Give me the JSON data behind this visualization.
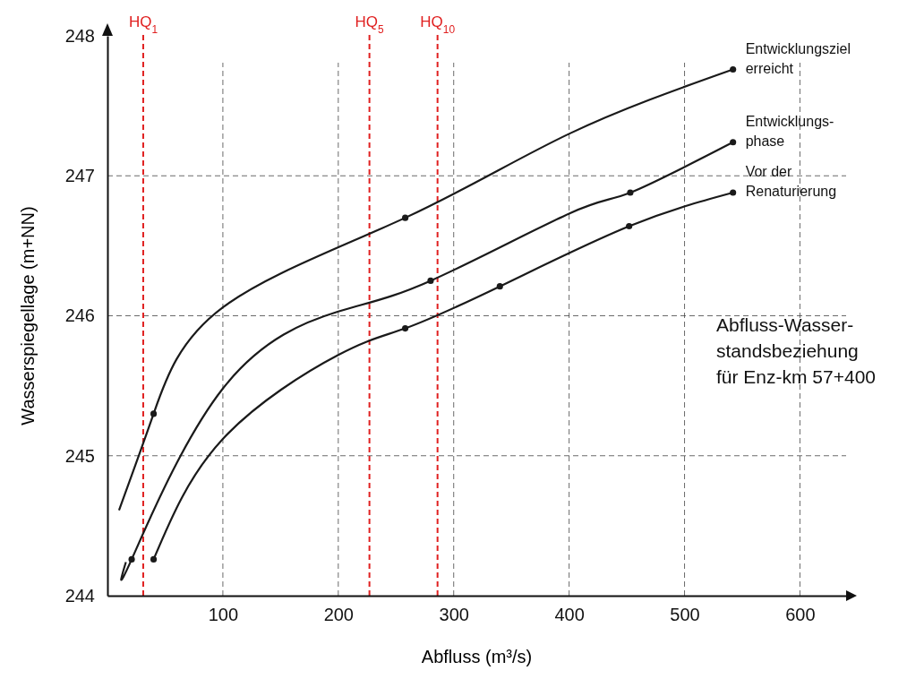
{
  "chart_data": {
    "type": "line",
    "xlabel": "Abfluss (m³/s)",
    "ylabel": "Wasserspiegellage (m+NN)",
    "xlim": [
      0,
      640
    ],
    "ylim": [
      244,
      248
    ],
    "xticks": [
      100,
      200,
      300,
      400,
      500,
      600
    ],
    "yticks": [
      244,
      245,
      246,
      247,
      248
    ],
    "grid": true,
    "marker": "none",
    "line_style": "solid",
    "series": [
      {
        "name": "Entwicklungsziel\nerreicht",
        "color": "#1a1a1a",
        "x": [
          10,
          40,
          100,
          258,
          400,
          542
        ],
        "values": [
          244.61,
          245.3,
          246.06,
          246.7,
          247.3,
          247.76
        ]
      },
      {
        "name": "Entwicklungs-\nphase",
        "color": "#1a1a1a",
        "x": [
          16,
          21,
          100,
          200,
          280,
          400,
          453,
          542
        ],
        "values": [
          244.24,
          244.26,
          245.48,
          246.03,
          246.25,
          246.73,
          246.88,
          247.24
        ]
      },
      {
        "name": "Vor der\nRenaturierung",
        "color": "#1a1a1a",
        "x": [
          40,
          100,
          200,
          258,
          340,
          452,
          542
        ],
        "values": [
          244.26,
          245.12,
          245.72,
          245.91,
          246.21,
          246.64,
          246.88
        ]
      },
      {
        "type": "scatter",
        "color": "#1a1a1a",
        "marker": "circle",
        "x": [
          40,
          258,
          542,
          21,
          280,
          453,
          542,
          40,
          258,
          340,
          452,
          542
        ],
        "values": [
          245.3,
          246.7,
          247.76,
          244.26,
          246.25,
          246.88,
          247.24,
          244.26,
          245.91,
          246.21,
          246.64,
          246.88
        ]
      }
    ],
    "ref_lines": [
      {
        "axis": "x",
        "value": 31,
        "label": "HQ$_{1}$",
        "color": "#e02020",
        "line_style": "dashed"
      },
      {
        "axis": "x",
        "value": 227,
        "label": "HQ$_{5}$",
        "color": "#e02020",
        "line_style": "dashed"
      },
      {
        "axis": "x",
        "value": 286,
        "label": "HQ$_{10}$",
        "color": "#e02020",
        "line_style": "dashed"
      }
    ],
    "annotations": [
      "Abfluss-Wasser-\nstandsbeziehung\nfür Enz-km 57+400"
    ]
  }
}
